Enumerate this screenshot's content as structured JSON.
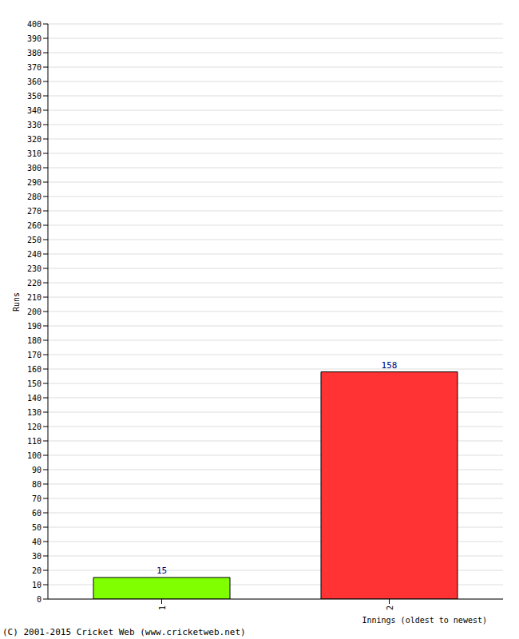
{
  "chart_data": {
    "type": "bar",
    "categories": [
      "1",
      "2"
    ],
    "values": [
      15,
      158
    ],
    "colors": [
      "#80ff00",
      "#ff3333"
    ],
    "x_label": "Innings (oldest to newest)",
    "y_label": "Runs",
    "annotations": [
      "(C) 2001-2015 Cricket Web (www.cricketweb.net)"
    ],
    "ylim": [
      0,
      400
    ],
    "yticks": [
      0,
      10,
      20,
      30,
      40,
      50,
      60,
      70,
      80,
      90,
      100,
      110,
      120,
      130,
      140,
      150,
      160,
      170,
      180,
      190,
      200,
      210,
      220,
      230,
      240,
      250,
      260,
      270,
      280,
      290,
      300,
      310,
      320,
      330,
      340,
      350,
      360,
      370,
      380,
      390,
      400
    ],
    "grid": true,
    "data_labels": true
  }
}
